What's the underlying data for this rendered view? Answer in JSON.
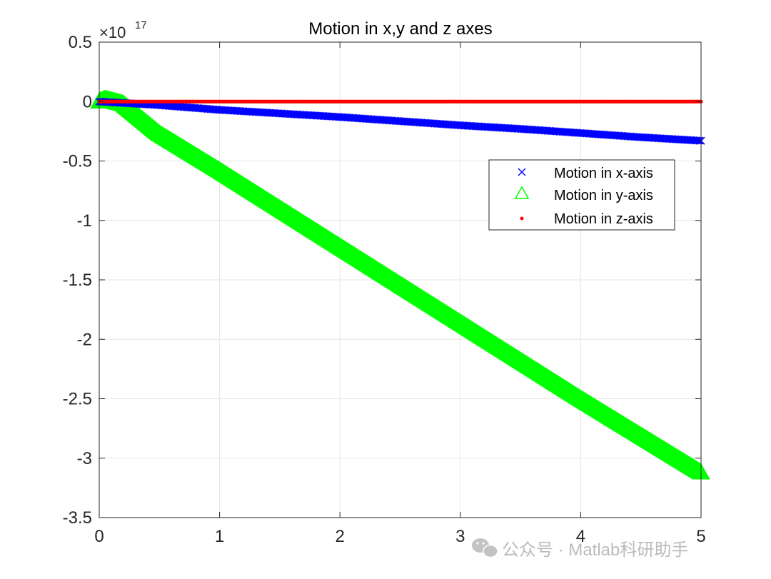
{
  "chart_data": {
    "type": "scatter",
    "title": "Motion in x,y and z axes",
    "exponent_base": "×10",
    "exponent_power": "17",
    "xlim": [
      0,
      5
    ],
    "ylim": [
      -3.5,
      0.5
    ],
    "x_ticks": [
      0,
      1,
      2,
      3,
      4,
      5
    ],
    "x_tick_labels": [
      "0",
      "1",
      "2",
      "3",
      "4",
      "5"
    ],
    "y_ticks": [
      0.5,
      0,
      -0.5,
      -1,
      -1.5,
      -2,
      -2.5,
      -3,
      -3.5
    ],
    "y_tick_labels": [
      "0.5",
      "0",
      "-0.5",
      "-1",
      "-1.5",
      "-2",
      "-2.5",
      "-3",
      "-3.5"
    ],
    "grid": true,
    "legend_position": "right-middle",
    "series": [
      {
        "name": "Motion in x-axis",
        "marker": "x",
        "color": "#0000ff",
        "x": [
          0,
          0.5,
          1,
          1.5,
          2,
          2.5,
          3,
          3.5,
          4,
          4.5,
          5
        ],
        "y": [
          0,
          -0.03,
          -0.07,
          -0.1,
          -0.13,
          -0.165,
          -0.2,
          -0.23,
          -0.265,
          -0.3,
          -0.33
        ]
      },
      {
        "name": "Motion in y-axis",
        "marker": "triangle",
        "color": "#00ff00",
        "x": [
          0,
          0.05,
          0.2,
          0.5,
          1,
          1.5,
          2,
          2.5,
          3,
          3.5,
          4,
          4.5,
          5
        ],
        "y": [
          0,
          0.02,
          -0.02,
          -0.27,
          -0.58,
          -0.9,
          -1.22,
          -1.54,
          -1.86,
          -2.18,
          -2.5,
          -2.81,
          -3.12
        ]
      },
      {
        "name": "Motion in z-axis",
        "marker": "dot",
        "color": "#ff0000",
        "x": [
          0,
          0.5,
          1,
          1.5,
          2,
          2.5,
          3,
          3.5,
          4,
          4.5,
          5
        ],
        "y": [
          0,
          0,
          0,
          0,
          0,
          0,
          0,
          0,
          0,
          0,
          0
        ]
      }
    ]
  },
  "watermark": {
    "text": "公众号 · Matlab科研助手"
  }
}
